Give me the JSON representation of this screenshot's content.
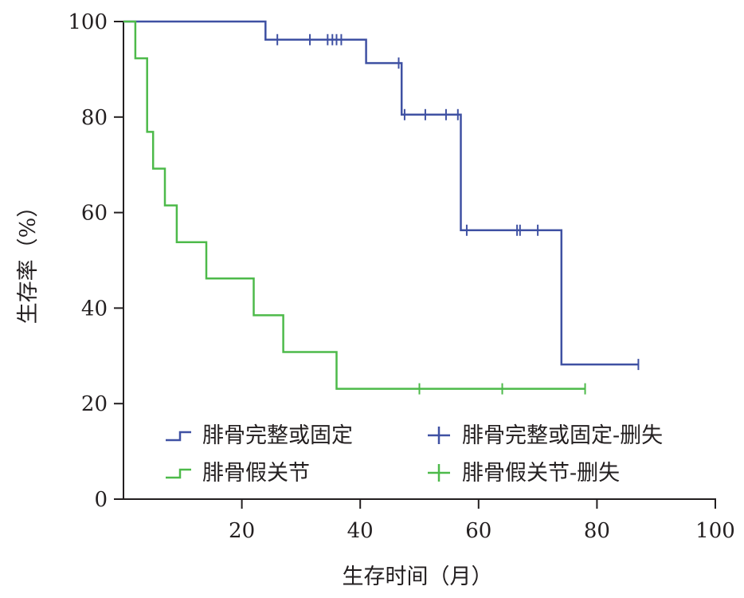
{
  "chart_data": {
    "type": "line",
    "subtype": "kaplan-meier",
    "title": "",
    "xlabel": "生存时间（月）",
    "ylabel": "生存率（%）",
    "xlim": [
      0,
      100
    ],
    "ylim": [
      0,
      100
    ],
    "xticks": [
      20,
      40,
      60,
      80,
      100
    ],
    "yticks": [
      0,
      20,
      40,
      60,
      80,
      100
    ],
    "grid": false,
    "legend_position": "bottom-center",
    "series": [
      {
        "name": "腓骨完整或固定",
        "color": "#3f51a3",
        "steps": [
          [
            0,
            100
          ],
          [
            24,
            100
          ],
          [
            24,
            96.2
          ],
          [
            41,
            96.2
          ],
          [
            41,
            91.3
          ],
          [
            47,
            91.3
          ],
          [
            47,
            80.5
          ],
          [
            57,
            80.5
          ],
          [
            57,
            56.3
          ],
          [
            74,
            56.3
          ],
          [
            74,
            28.2
          ],
          [
            87,
            28.2
          ]
        ],
        "censor_name": "腓骨完整或固定-删失",
        "censored": [
          [
            26,
            96.2
          ],
          [
            31.5,
            96.2
          ],
          [
            34.5,
            96.2
          ],
          [
            35.3,
            96.2
          ],
          [
            36,
            96.2
          ],
          [
            36.8,
            96.2
          ],
          [
            46.5,
            91.3
          ],
          [
            47.5,
            80.5
          ],
          [
            51,
            80.5
          ],
          [
            54.5,
            80.5
          ],
          [
            56.5,
            80.5
          ],
          [
            58,
            56.3
          ],
          [
            66.5,
            56.3
          ],
          [
            67,
            56.3
          ],
          [
            70,
            56.3
          ],
          [
            87,
            28.2
          ]
        ]
      },
      {
        "name": "腓骨假关节",
        "color": "#4dba4a",
        "steps": [
          [
            0,
            100
          ],
          [
            2,
            100
          ],
          [
            2,
            92.3
          ],
          [
            4,
            92.3
          ],
          [
            4,
            76.9
          ],
          [
            5,
            76.9
          ],
          [
            5,
            69.2
          ],
          [
            7,
            69.2
          ],
          [
            7,
            61.5
          ],
          [
            9,
            61.5
          ],
          [
            9,
            53.8
          ],
          [
            14,
            53.8
          ],
          [
            14,
            46.2
          ],
          [
            22,
            46.2
          ],
          [
            22,
            38.5
          ],
          [
            27,
            38.5
          ],
          [
            27,
            30.8
          ],
          [
            36,
            30.8
          ],
          [
            36,
            23.1
          ],
          [
            78,
            23.1
          ]
        ],
        "censor_name": "腓骨假关节-删失",
        "censored": [
          [
            50,
            23.1
          ],
          [
            64,
            23.1
          ],
          [
            78,
            23.1
          ]
        ]
      }
    ]
  }
}
